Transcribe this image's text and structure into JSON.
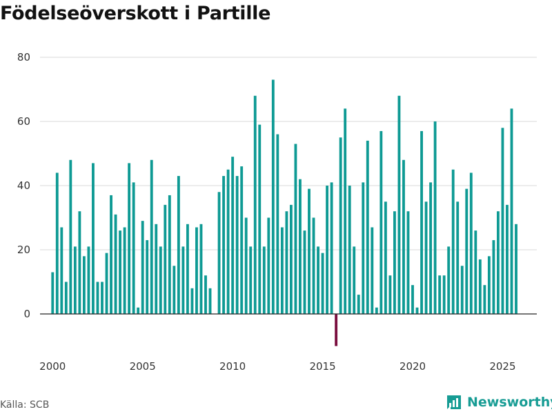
{
  "title": "Födelseöverskott i Partille",
  "source": "Källa: SCB",
  "brand": "Newsworthy",
  "colors": {
    "positive": "#0e9a94",
    "negative": "#7a0f3f",
    "grid": "#d9d9d9",
    "zero": "#222222",
    "brand": "#179c94"
  },
  "chart_data": {
    "type": "bar",
    "title": "Födelseöverskott i Partille",
    "xlabel": "",
    "ylabel": "",
    "ylim": [
      -10,
      80
    ],
    "yticks": [
      0,
      20,
      40,
      60,
      80
    ],
    "xticks": [
      2000,
      2005,
      2010,
      2015,
      2020,
      2025
    ],
    "xlim": [
      1999.3,
      2026.9
    ],
    "grid": true,
    "frequency": "quarterly",
    "start_year": 2000,
    "values": [
      13,
      44,
      27,
      10,
      48,
      21,
      32,
      18,
      21,
      47,
      10,
      10,
      19,
      37,
      31,
      26,
      27,
      47,
      41,
      2,
      29,
      23,
      48,
      28,
      21,
      34,
      37,
      15,
      43,
      21,
      28,
      8,
      27,
      28,
      12,
      8,
      0,
      38,
      43,
      45,
      49,
      43,
      46,
      30,
      21,
      68,
      59,
      21,
      30,
      73,
      56,
      27,
      32,
      34,
      53,
      42,
      26,
      39,
      30,
      21,
      19,
      40,
      41,
      -10,
      55,
      64,
      40,
      21,
      6,
      41,
      54,
      27,
      2,
      57,
      35,
      12,
      32,
      68,
      48,
      32,
      9,
      2,
      57,
      35,
      41,
      60,
      12,
      12,
      21,
      45,
      35,
      15,
      39,
      44,
      26,
      17,
      9,
      18,
      23,
      32,
      58,
      34,
      64,
      28
    ]
  }
}
